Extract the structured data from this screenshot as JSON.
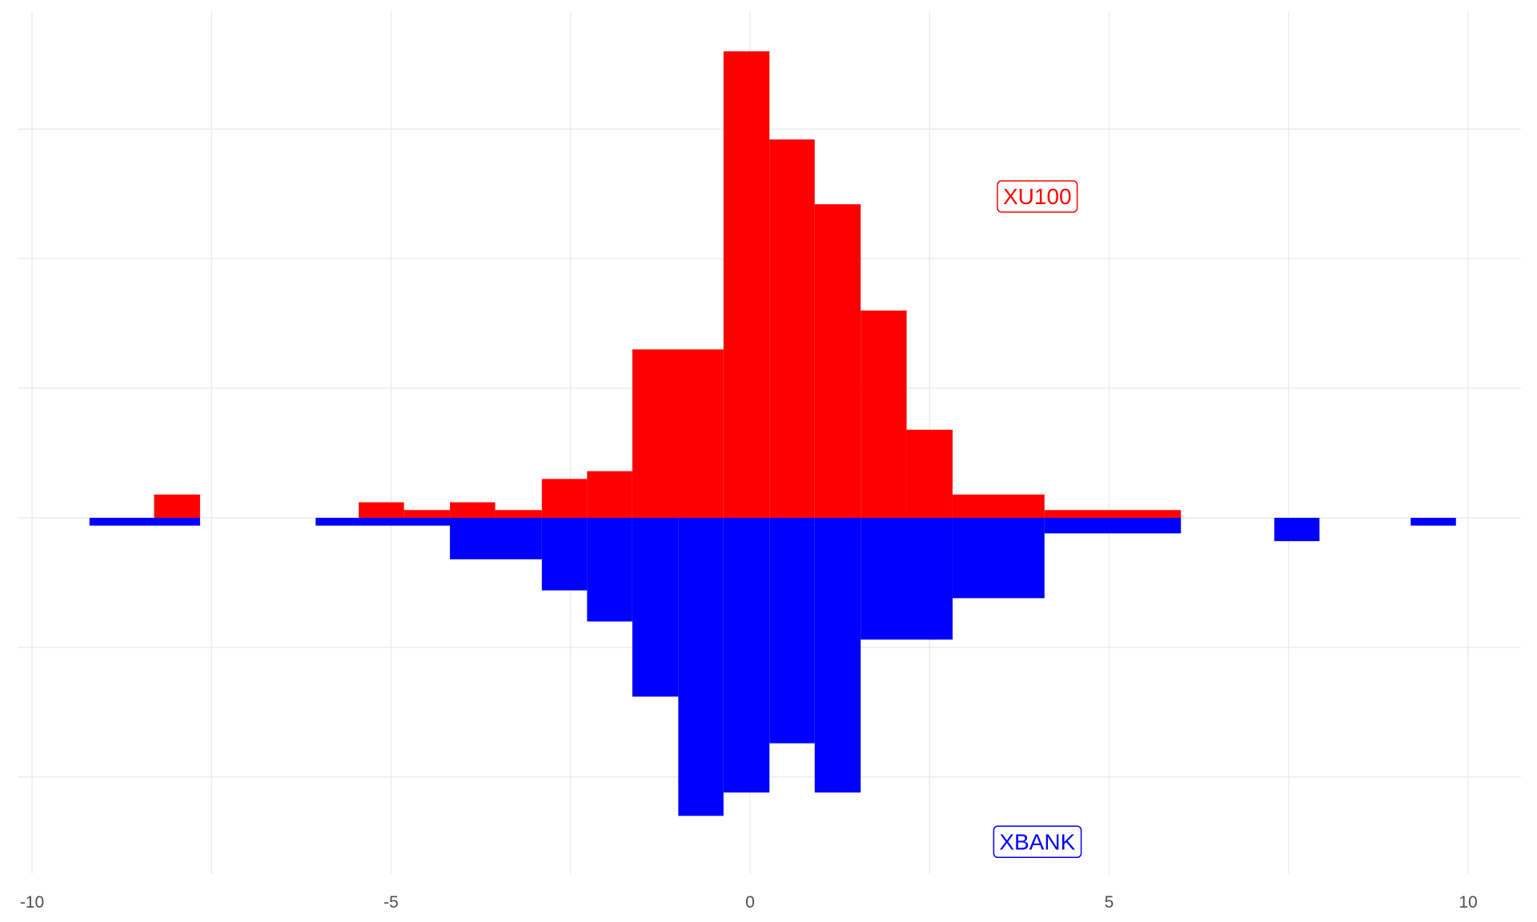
{
  "chart_data": {
    "type": "bar",
    "subtype": "mirrored-histogram",
    "title": "",
    "xlabel": "",
    "ylabel": "",
    "xlim": [
      -10,
      10
    ],
    "ylim": [
      -0.115,
      0.195
    ],
    "grid": true,
    "bin_width": 0.64,
    "x_ticks": [
      -10,
      -5,
      0,
      5,
      10
    ],
    "x_tick_labels": [
      "-10",
      "-5",
      "0",
      "5",
      "10"
    ],
    "y_gridlines": [
      -0.1,
      -0.05,
      0,
      0.05,
      0.1,
      0.15
    ],
    "series": [
      {
        "name": "XU100",
        "color": "#ff0000",
        "direction": "up",
        "bins": [
          {
            "x0": -8.3,
            "x1": -7.66,
            "value": 0.009
          },
          {
            "x0": -5.45,
            "x1": -4.82,
            "value": 0.006
          },
          {
            "x0": -4.82,
            "x1": -4.18,
            "value": 0.003
          },
          {
            "x0": -4.18,
            "x1": -3.55,
            "value": 0.006
          },
          {
            "x0": -3.55,
            "x1": -2.9,
            "value": 0.003
          },
          {
            "x0": -2.9,
            "x1": -2.27,
            "value": 0.015
          },
          {
            "x0": -2.27,
            "x1": -1.64,
            "value": 0.018
          },
          {
            "x0": -1.64,
            "x1": -0.37,
            "value": 0.065
          },
          {
            "x0": -0.37,
            "x1": 0.27,
            "value": 0.18
          },
          {
            "x0": 0.27,
            "x1": 0.9,
            "value": 0.146
          },
          {
            "x0": 0.9,
            "x1": 1.54,
            "value": 0.121
          },
          {
            "x0": 1.54,
            "x1": 2.18,
            "value": 0.08
          },
          {
            "x0": 2.18,
            "x1": 2.82,
            "value": 0.034
          },
          {
            "x0": 2.82,
            "x1": 4.1,
            "value": 0.009
          },
          {
            "x0": 4.1,
            "x1": 6.0,
            "value": 0.003
          }
        ]
      },
      {
        "name": "XBANK",
        "color": "#0000ff",
        "direction": "down",
        "bins": [
          {
            "x0": -9.2,
            "x1": -7.66,
            "value": 0.003
          },
          {
            "x0": -6.05,
            "x1": -4.18,
            "value": 0.003
          },
          {
            "x0": -4.18,
            "x1": -2.9,
            "value": 0.016
          },
          {
            "x0": -2.9,
            "x1": -2.27,
            "value": 0.028
          },
          {
            "x0": -2.27,
            "x1": -1.64,
            "value": 0.04
          },
          {
            "x0": -1.64,
            "x1": -1.0,
            "value": 0.069
          },
          {
            "x0": -1.0,
            "x1": -0.37,
            "value": 0.115
          },
          {
            "x0": -0.37,
            "x1": 0.27,
            "value": 0.106
          },
          {
            "x0": 0.27,
            "x1": 0.9,
            "value": 0.087
          },
          {
            "x0": 0.9,
            "x1": 1.54,
            "value": 0.106
          },
          {
            "x0": 1.54,
            "x1": 2.82,
            "value": 0.047
          },
          {
            "x0": 2.82,
            "x1": 4.1,
            "value": 0.031
          },
          {
            "x0": 4.1,
            "x1": 6.0,
            "value": 0.006
          },
          {
            "x0": 7.3,
            "x1": 7.93,
            "value": 0.009
          },
          {
            "x0": 9.2,
            "x1": 9.83,
            "value": 0.003
          }
        ]
      }
    ],
    "annotations": [
      {
        "text": "XU100",
        "color": "#ff0000",
        "x": 4.0,
        "y": 0.124
      },
      {
        "text": "XBANK",
        "color": "#0000ff",
        "x": 4.0,
        "y": -0.125
      }
    ]
  }
}
